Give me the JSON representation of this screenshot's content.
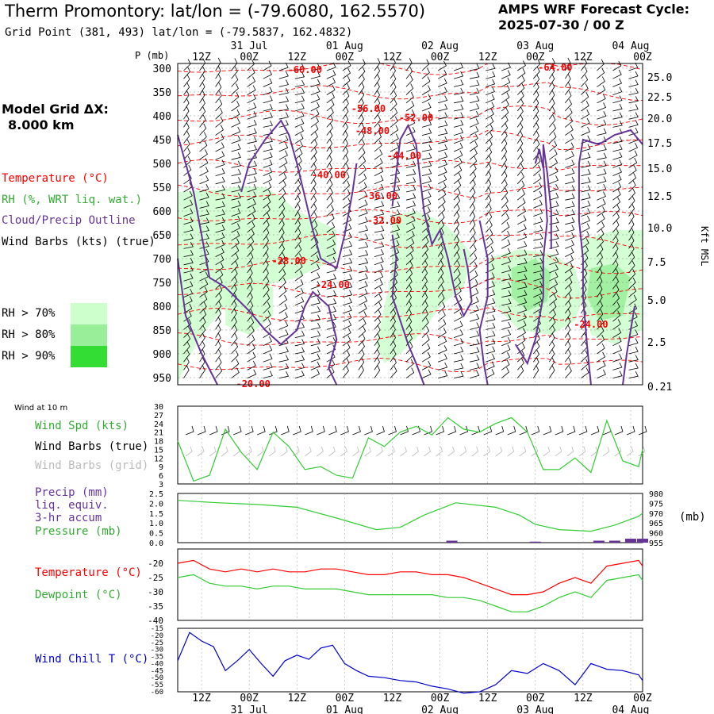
{
  "header": {
    "title": "Therm Promontory:  lat/lon = (-79.6080, 162.5570)",
    "subtitle": "Grid Point (381, 493) lat/lon = (-79.5837, 162.4832)",
    "cycle_line1": "AMPS WRF Forecast Cycle:",
    "cycle_line2": "2025-07-30 / 00  Z"
  },
  "left": {
    "grid_title": "Model Grid ΔX:",
    "grid_value": "8.000 km",
    "legend_temperature": "Temperature (°C)",
    "legend_rh": "RH (%, WRT liq. wat.)",
    "legend_cloud": "Cloud/Precip Outline",
    "legend_wind": "Wind Barbs (kts) (true)",
    "rh70": "RH > 70%",
    "rh80": "RH > 80%",
    "rh90": "RH > 90%"
  },
  "panels": {
    "wind10m_caption": "Wind at 10 m",
    "wind_spd": "Wind Spd (kts)",
    "wind_barbs_true": "Wind Barbs (true)",
    "wind_barbs_grid": "Wind Barbs (grid)",
    "precip1": "Precip (mm)",
    "precip2": "liq. equiv.",
    "precip3": "3-hr accum",
    "pressure": "Pressure (mb)",
    "pressure_unit": "(mb)",
    "temperature": "Temperature (°C)",
    "dewpoint": "Dewpoint (°C)",
    "windchill": "Wind Chill T (°C)"
  },
  "colors": {
    "temperature": "#ff0000",
    "rh": "#33cc33",
    "cloud": "#663399",
    "windchill": "#0000cc",
    "precip": "#663399",
    "grid_barbs": "#bbbbbb",
    "rh70": "#ccffcc",
    "rh80": "#99ee99",
    "rh90": "#33dd33"
  },
  "chart_data": [
    {
      "type": "contour",
      "ylabel": "P (mb)",
      "y2label": "Kft MSL",
      "time_axis": {
        "top_hours": [
          "12Z",
          "00Z",
          "12Z",
          "00Z",
          "12Z",
          "00Z",
          "12Z",
          "00Z",
          "12Z",
          "00Z"
        ],
        "dates": [
          "31 Jul",
          "01 Aug",
          "02 Aug",
          "03 Aug",
          "04 Aug"
        ],
        "xlim_hours": [
          0,
          117
        ]
      },
      "pressure_ticks": [
        300,
        350,
        400,
        450,
        500,
        550,
        600,
        650,
        700,
        750,
        800,
        850,
        900,
        950
      ],
      "height_ticks_kft": [
        "25.0",
        "22.5",
        "20.0",
        "17.5",
        "15.0",
        "12.5",
        "10.0",
        "7.5",
        "5.0",
        "2.5",
        "0.21"
      ],
      "temperature_labels": [
        {
          "text": "-60.00",
          "t": 32,
          "p": 303
        },
        {
          "text": "-64.00",
          "t": 95,
          "p": 298
        },
        {
          "text": "-56.00",
          "t": 48,
          "p": 385
        },
        {
          "text": "-52.00",
          "t": 60,
          "p": 404
        },
        {
          "text": "-48.00",
          "t": 49,
          "p": 432
        },
        {
          "text": "-44.00",
          "t": 57,
          "p": 484
        },
        {
          "text": "-40.00",
          "t": 38,
          "p": 524
        },
        {
          "text": "-36.00",
          "t": 51,
          "p": 568
        },
        {
          "text": "-32.00",
          "t": 52,
          "p": 620
        },
        {
          "text": "-28.00",
          "t": 28,
          "p": 705
        },
        {
          "text": "-24.00",
          "t": 39,
          "p": 755
        },
        {
          "text": "-24.00",
          "t": 104,
          "p": 838
        },
        {
          "text": "-20.00",
          "t": 19,
          "p": 963
        }
      ]
    },
    {
      "type": "line",
      "title": "Wind at 10 m",
      "ylim": [
        3,
        30
      ],
      "yticks": [
        3,
        6,
        9,
        12,
        15,
        18,
        21,
        24,
        27,
        30
      ],
      "series": [
        {
          "name": "Wind Spd (kts)",
          "x": [
            0,
            4,
            8,
            12,
            16,
            20,
            24,
            28,
            32,
            36,
            40,
            44,
            48,
            52,
            56,
            60,
            64,
            68,
            72,
            76,
            80,
            84,
            88,
            92,
            96,
            100,
            104,
            108,
            112,
            116,
            117
          ],
          "values": [
            18,
            4,
            6,
            22,
            14,
            8,
            21,
            16,
            8,
            9,
            6,
            5,
            19,
            16,
            21,
            23,
            20,
            26,
            22,
            21,
            24,
            26,
            21,
            8,
            8,
            12,
            7,
            25,
            11,
            9,
            15
          ]
        }
      ]
    },
    {
      "type": "line",
      "ylim_left": [
        0,
        2.5
      ],
      "yticks_left": [
        "2.5",
        "2.0",
        "1.5",
        "1.0",
        "0.5",
        "0.0"
      ],
      "ylim_right": [
        955,
        980
      ],
      "yticks_right": [
        980,
        975,
        970,
        965,
        960,
        955
      ],
      "series": [
        {
          "name": "Pressure (mb)",
          "x": [
            0,
            10,
            20,
            30,
            40,
            50,
            56,
            62,
            70,
            80,
            86,
            90,
            96,
            104,
            110,
            116,
            117
          ],
          "values": [
            976.5,
            975.3,
            974.4,
            973.0,
            967.5,
            961.6,
            962.8,
            969.0,
            975.3,
            973.0,
            969.0,
            964.3,
            961.6,
            960.8,
            963.9,
            968.4,
            970.0
          ]
        },
        {
          "name": "Precip (mm)",
          "x": [
            69,
            90,
            106,
            110,
            114,
            117
          ],
          "values": [
            0.1,
            0.05,
            0.1,
            0.1,
            0.2,
            0.2
          ]
        }
      ]
    },
    {
      "type": "line",
      "ylim": [
        -40,
        -15
      ],
      "yticks": [
        -20,
        -25,
        -30,
        -35,
        -40
      ],
      "series": [
        {
          "name": "Temperature (°C)",
          "x": [
            0,
            4,
            8,
            12,
            16,
            20,
            24,
            28,
            32,
            36,
            40,
            44,
            48,
            52,
            56,
            60,
            64,
            68,
            72,
            76,
            80,
            84,
            88,
            92,
            96,
            100,
            104,
            108,
            112,
            116,
            117
          ],
          "values": [
            -20,
            -19,
            -22,
            -23,
            -22,
            -23,
            -22,
            -23,
            -23,
            -22,
            -22,
            -23,
            -24,
            -24,
            -23,
            -23,
            -24,
            -24,
            -25,
            -27,
            -29,
            -31,
            -31,
            -30,
            -27,
            -25,
            -27,
            -21,
            -20,
            -19,
            -21
          ]
        },
        {
          "name": "Dewpoint (°C)",
          "x": [
            0,
            4,
            8,
            12,
            16,
            20,
            24,
            28,
            32,
            36,
            40,
            44,
            48,
            52,
            56,
            60,
            64,
            68,
            72,
            76,
            80,
            84,
            88,
            92,
            96,
            100,
            104,
            108,
            112,
            116,
            117
          ],
          "values": [
            -25,
            -24,
            -27,
            -28,
            -28,
            -29,
            -28,
            -28,
            -29,
            -29,
            -29,
            -30,
            -31,
            -31,
            -31,
            -31,
            -31,
            -32,
            -32,
            -33,
            -35,
            -37,
            -37,
            -35,
            -32,
            -30,
            -32,
            -26,
            -25,
            -24,
            -26
          ]
        }
      ]
    },
    {
      "type": "line",
      "ylim": [
        -60,
        -15
      ],
      "yticks": [
        -15,
        -20,
        -25,
        -30,
        -35,
        -40,
        -45,
        -50,
        -55,
        -60
      ],
      "series": [
        {
          "name": "Wind Chill T (°C)",
          "x": [
            0,
            3,
            6,
            9,
            12,
            15,
            18,
            21,
            24,
            27,
            30,
            33,
            36,
            39,
            42,
            45,
            48,
            52,
            56,
            60,
            64,
            68,
            72,
            76,
            80,
            84,
            88,
            92,
            96,
            100,
            104,
            108,
            112,
            116,
            117
          ],
          "values": [
            -38,
            -18,
            -24,
            -28,
            -45,
            -38,
            -30,
            -40,
            -49,
            -38,
            -34,
            -37,
            -29,
            -27,
            -40,
            -45,
            -49,
            -50,
            -52,
            -53,
            -56,
            -58,
            -61,
            -60,
            -55,
            -45,
            -47,
            -40,
            -45,
            -55,
            -40,
            -44,
            -45,
            -48,
            -52
          ]
        }
      ]
    }
  ]
}
